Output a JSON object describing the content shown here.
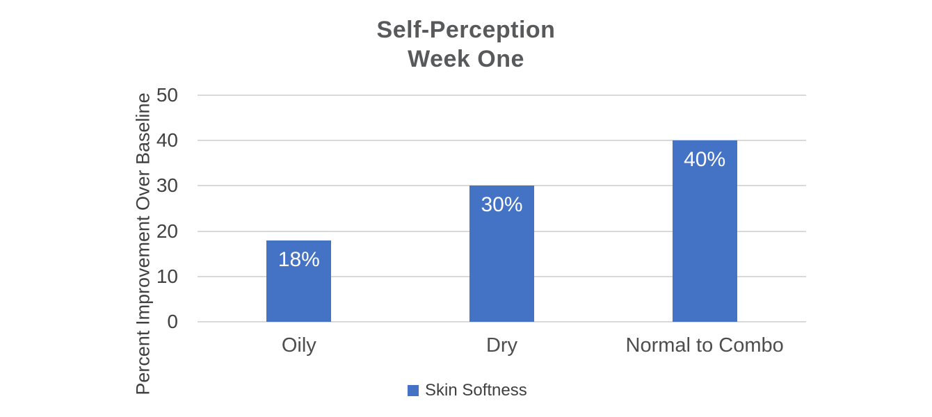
{
  "title": {
    "line1": "Self-Perception",
    "line2": "Week One"
  },
  "legend": {
    "label": "Skin Softness"
  },
  "chart_data": {
    "type": "bar",
    "title": "Self-Perception Week One",
    "categories": [
      "Oily",
      "Dry",
      "Normal to Combo"
    ],
    "series": [
      {
        "name": "Skin Softness",
        "values": [
          18,
          30,
          40
        ]
      }
    ],
    "data_labels": [
      "18%",
      "30%",
      "40%"
    ],
    "xlabel": "",
    "ylabel": "Percent Improvement Over Baseline",
    "ylim": [
      0,
      50
    ],
    "yticks": [
      0,
      10,
      20,
      30,
      40,
      50
    ],
    "grid": true,
    "legend_position": "bottom",
    "colors": {
      "bar": "#4472C4",
      "gridline": "#D9D9D9",
      "title_text": "#58595B",
      "axis_text": "#404040",
      "category_text": "#4D4D4F",
      "data_label_text": "#FFFFFF",
      "background": "#FFFFFF"
    }
  }
}
